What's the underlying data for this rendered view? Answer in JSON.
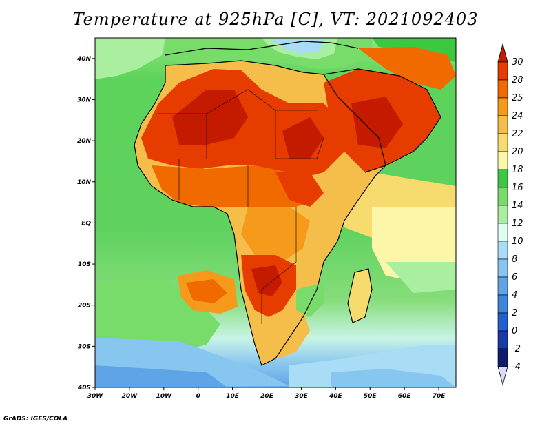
{
  "header": {
    "title": "Temperature at 925hPa [C], VT: 2021092403"
  },
  "footer": {
    "credit": "GrADS: IGES/COLA"
  },
  "map": {
    "lon_range": [
      -30,
      75
    ],
    "lat_range": [
      -40,
      45
    ],
    "x_ticks": [
      "30W",
      "20W",
      "10W",
      "0",
      "10E",
      "20E",
      "30E",
      "40E",
      "50E",
      "60E",
      "70E"
    ],
    "y_ticks": [
      "40N",
      "30N",
      "20N",
      "10N",
      "EQ",
      "10S",
      "20S",
      "30S",
      "40S"
    ]
  },
  "colorbar": {
    "levels": [
      "30",
      "28",
      "25",
      "24",
      "22",
      "20",
      "18",
      "16",
      "14",
      "12",
      "10",
      "8",
      "6",
      "4",
      "2",
      "0",
      "-2",
      "-4"
    ],
    "colors": [
      "#c41a00",
      "#e63c00",
      "#f06a00",
      "#f59a1a",
      "#f5bd4a",
      "#f7db6e",
      "#fbf6a8",
      "#3cc840",
      "#78dc6a",
      "#aaeea0",
      "#dcfff0",
      "#a9dcf5",
      "#86c6ef",
      "#5ea4e6",
      "#3d86dc",
      "#2360cf",
      "#1a3aa8",
      "#101a6e",
      "#d8dcf8"
    ]
  }
}
